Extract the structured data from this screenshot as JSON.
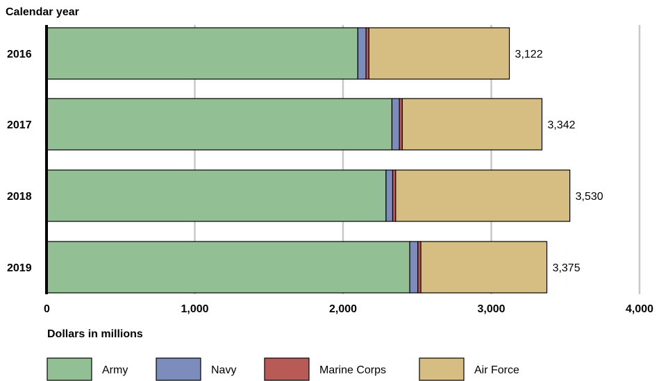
{
  "chart_data": {
    "type": "bar",
    "orientation": "horizontal",
    "stacked": true,
    "ylabel": "Calendar year",
    "xlabel": "Dollars in millions",
    "xlim": [
      0,
      4000
    ],
    "xticks": [
      "0",
      "1,000",
      "2,000",
      "3,000",
      "4,000"
    ],
    "xtick_values": [
      0,
      1000,
      2000,
      3000,
      4000
    ],
    "categories": [
      "2016",
      "2017",
      "2018",
      "2019"
    ],
    "series": [
      {
        "name": "Army",
        "color": "#93bf95",
        "values": [
          2100,
          2330,
          2290,
          2450
        ]
      },
      {
        "name": "Navy",
        "color": "#7b8cbd",
        "values": [
          55,
          50,
          45,
          55
        ]
      },
      {
        "name": "Marine Corps",
        "color": "#b85a55",
        "values": [
          20,
          20,
          20,
          20
        ]
      },
      {
        "name": "Air Force",
        "color": "#d6bd82",
        "values": [
          947,
          942,
          1175,
          850
        ]
      }
    ],
    "totals": [
      "3,122",
      "3,342",
      "3,530",
      "3,375"
    ],
    "grid": true,
    "legend_position": "bottom"
  }
}
